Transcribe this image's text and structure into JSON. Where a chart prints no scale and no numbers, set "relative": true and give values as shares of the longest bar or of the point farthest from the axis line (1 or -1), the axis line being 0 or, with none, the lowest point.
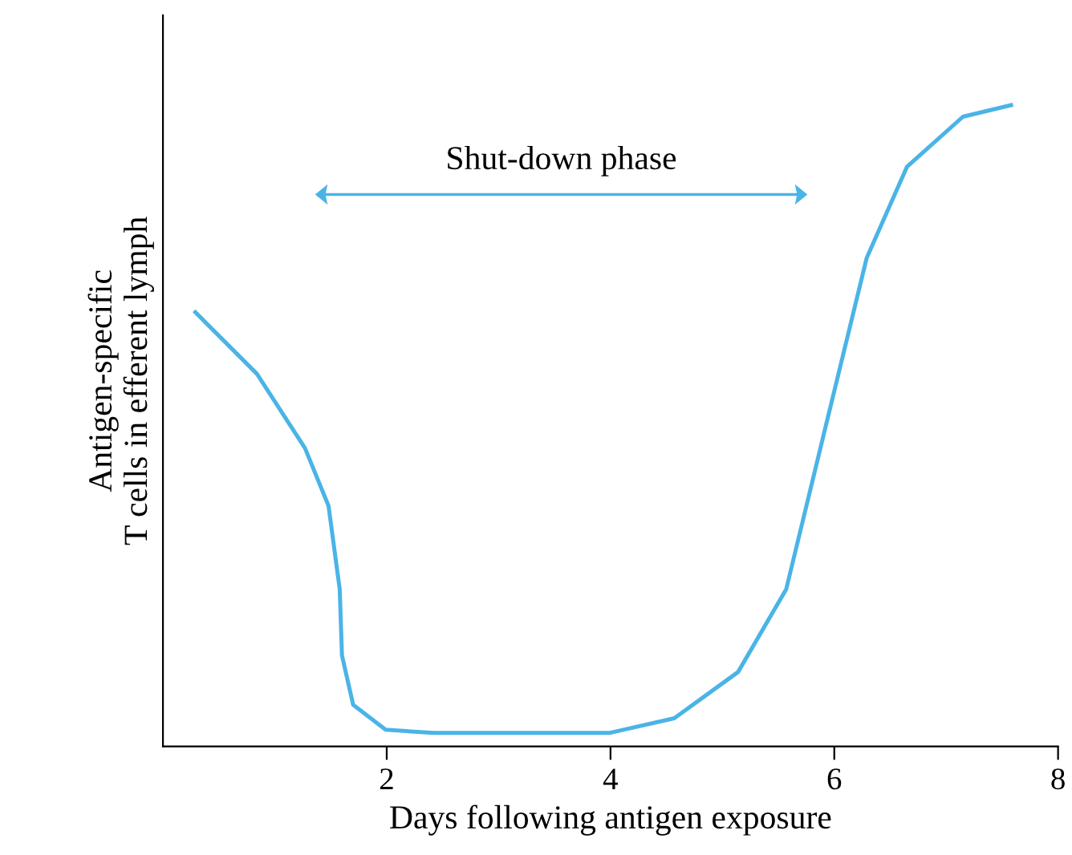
{
  "chart_data": {
    "type": "line",
    "relative": true,
    "xlabel": "Days following antigen exposure",
    "ylabel": "Antigen-specific\nT cells in efferent lymph",
    "xlim": [
      0,
      8
    ],
    "xticks": [
      2,
      4,
      6,
      8
    ],
    "grid": false,
    "legend": false,
    "marker": "none",
    "line_style": "solid",
    "series": [
      {
        "color": "#4ab4e6",
        "x": [
          0.29,
          0.84,
          1.27,
          1.48,
          1.58,
          1.6,
          1.7,
          1.99,
          2.42,
          3.99,
          4.57,
          5.14,
          5.57,
          5.93,
          6.29,
          6.65,
          7.15,
          7.58
        ],
        "values": [
          0.677,
          0.581,
          0.465,
          0.375,
          0.245,
          0.142,
          0.065,
          0.026,
          0.021,
          0.021,
          0.044,
          0.116,
          0.245,
          0.504,
          0.762,
          0.904,
          0.982,
          1.0
        ]
      }
    ],
    "annotations": [
      "Shut-down phase"
    ]
  }
}
